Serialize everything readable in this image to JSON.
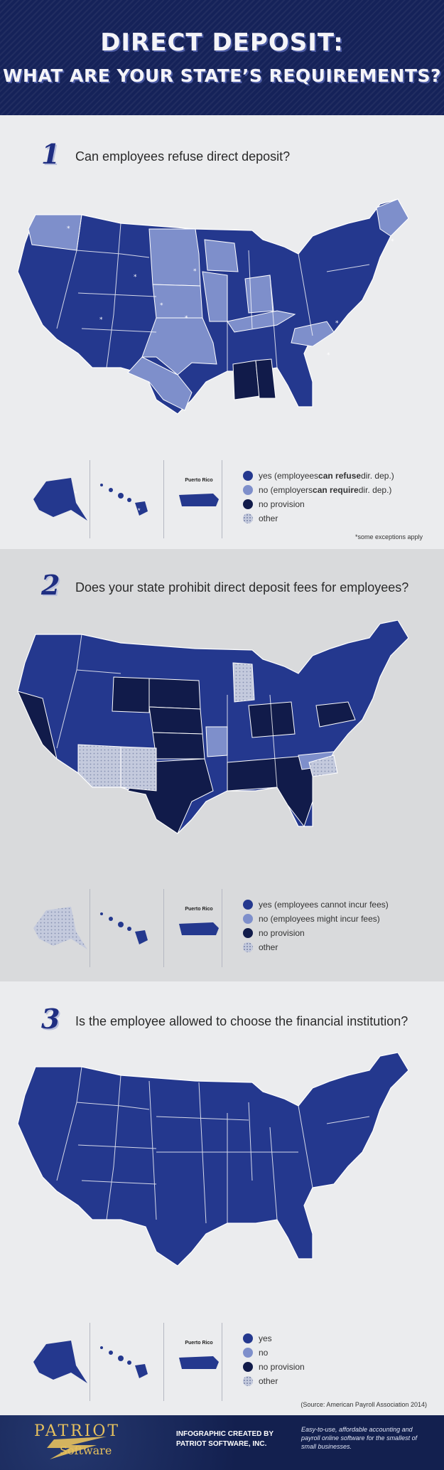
{
  "header": {
    "title_line1": "DIRECT DEPOSIT:",
    "title_line2": "WHAT ARE YOUR STATE’S REQUIREMENTS?"
  },
  "colors": {
    "yes": "#24388e",
    "no": "#7e8fcb",
    "no_provision": "#111b4a",
    "other": "#c4cadd"
  },
  "questions": [
    {
      "number": "1",
      "text": "Can employees refuse direct deposit?",
      "legend": [
        {
          "lead": "yes (employees ",
          "bold": "can refuse",
          "tail": " dir. dep.)"
        },
        {
          "lead": "no  (employers ",
          "bold": "can require",
          "tail": " dir. dep.)"
        },
        {
          "lead": "no provision",
          "bold": "",
          "tail": ""
        },
        {
          "lead": "other",
          "bold": "",
          "tail": ""
        }
      ],
      "note": "*some exceptions apply",
      "puerto_rico_label": "Puerto Rico"
    },
    {
      "number": "2",
      "text": "Does your state prohibit direct deposit fees for employees?",
      "legend": [
        {
          "lead": "yes (employees cannot incur fees)",
          "bold": "",
          "tail": ""
        },
        {
          "lead": "no  (employees might incur fees)",
          "bold": "",
          "tail": ""
        },
        {
          "lead": "no provision",
          "bold": "",
          "tail": ""
        },
        {
          "lead": "other",
          "bold": "",
          "tail": ""
        }
      ],
      "puerto_rico_label": "Puerto Rico"
    },
    {
      "number": "3",
      "text": "Is the employee allowed to choose the financial institution?",
      "legend": [
        {
          "lead": "yes",
          "bold": "",
          "tail": ""
        },
        {
          "lead": "no",
          "bold": "",
          "tail": ""
        },
        {
          "lead": "no provision",
          "bold": "",
          "tail": ""
        },
        {
          "lead": "other",
          "bold": "",
          "tail": ""
        }
      ],
      "source": "(Source: American Payroll Association 2014)",
      "puerto_rico_label": "Puerto Rico"
    }
  ],
  "footer": {
    "logo_word1": "PATRIOT",
    "logo_word2": "Software",
    "credit_line1": "INFOGRAPHIC CREATED BY",
    "credit_line2": "PATRIOT SOFTWARE, INC.",
    "tagline": "Easy-to-use, affordable accounting and payroll online software for the smallest of small businesses."
  }
}
